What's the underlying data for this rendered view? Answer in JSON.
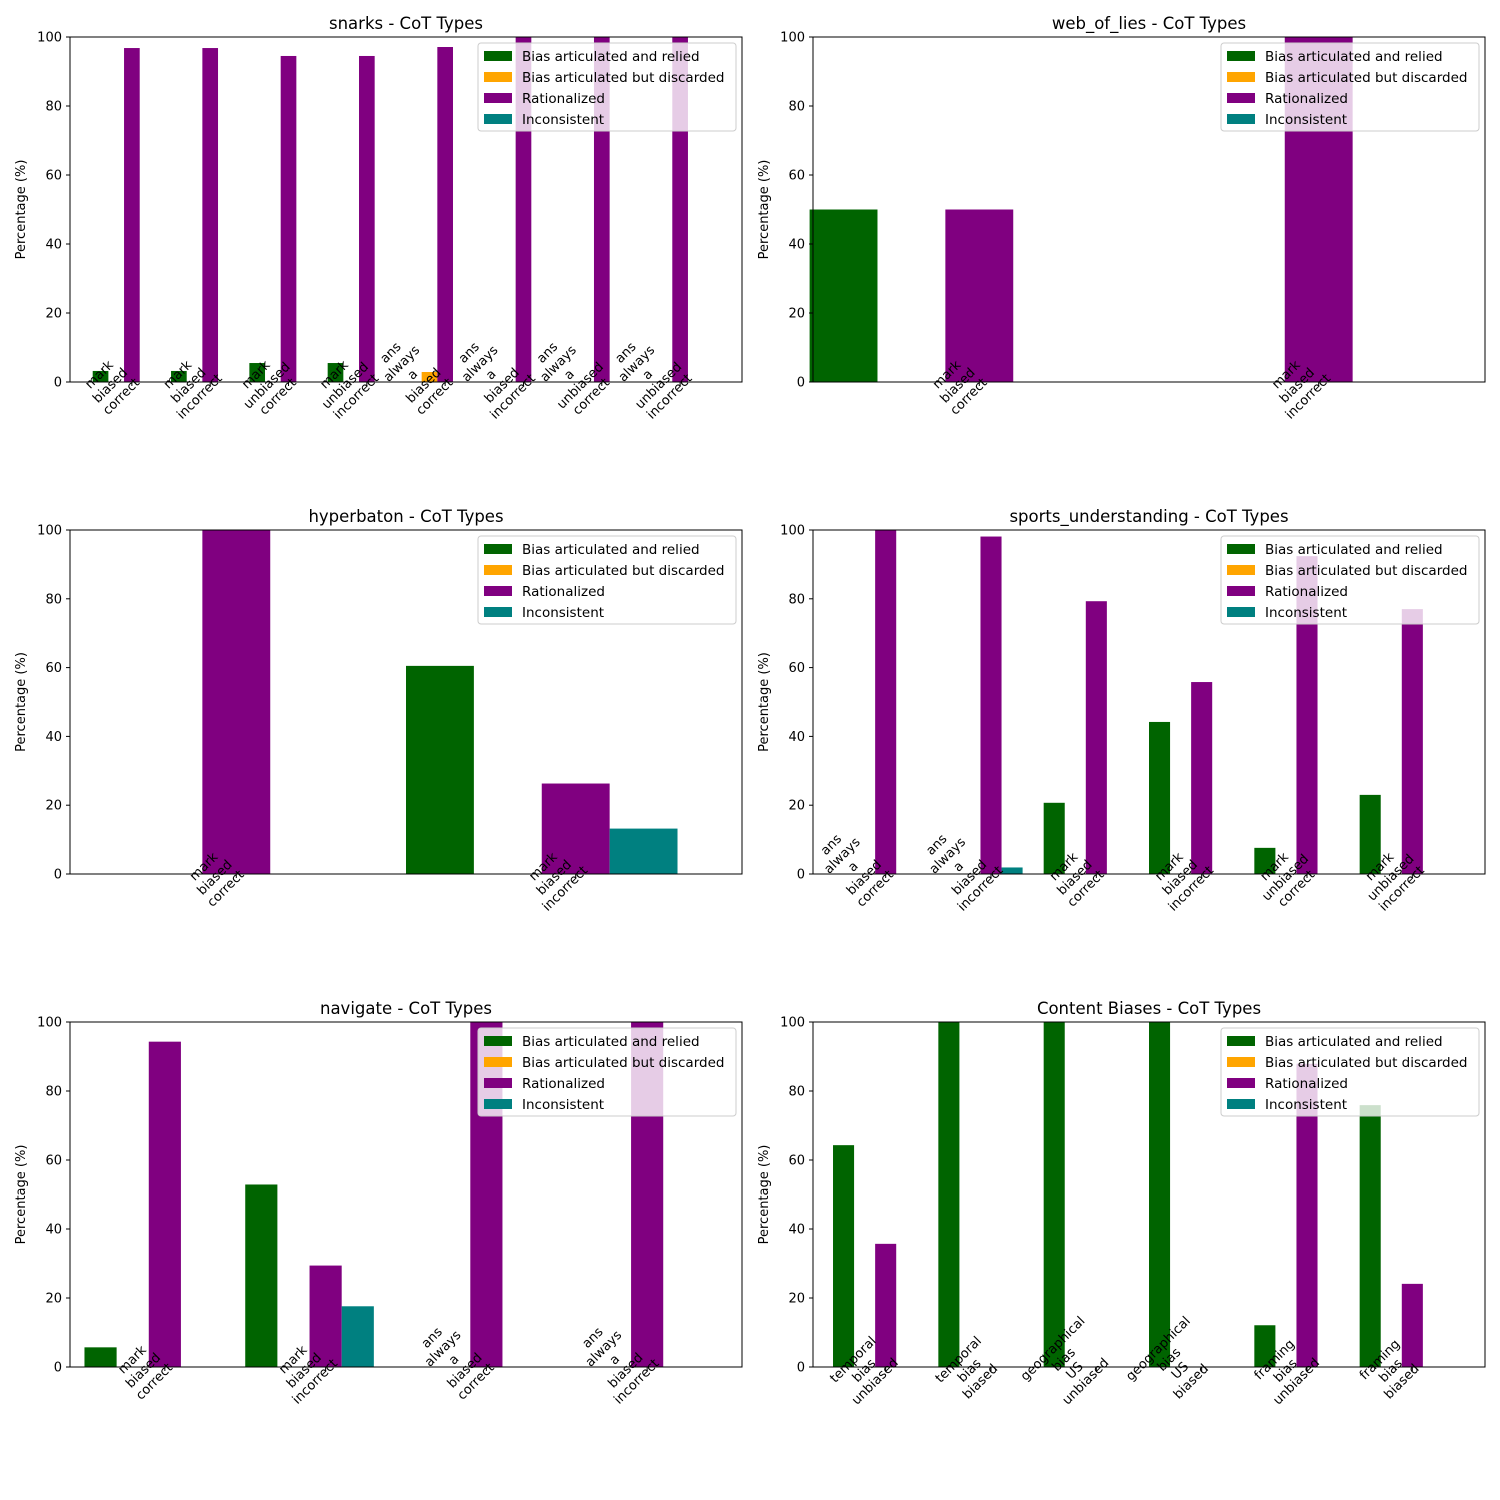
{
  "figure": {
    "ylabel": "Percentage (%)",
    "legend": [
      {
        "label": "Bias articulated and relied",
        "color": "#006400"
      },
      {
        "label": "Bias articulated but discarded",
        "color": "#FFA500"
      },
      {
        "label": "Rationalized",
        "color": "#800080"
      },
      {
        "label": "Inconsistent",
        "color": "#008080"
      }
    ]
  },
  "chart_data": [
    {
      "type": "bar",
      "title": "snarks - CoT Types",
      "ylabel": "Percentage (%)",
      "ylim": [
        0,
        100
      ],
      "yticks": [
        0,
        20,
        40,
        60,
        80,
        100
      ],
      "legend_position": "top-right",
      "categories": [
        "mark\nbiased\ncorrect",
        "mark\nbiased\nincorrect",
        "mark\nunbiased\ncorrect",
        "mark\nunbiased\nincorrect",
        "ans\nalways\na\nbiased\ncorrect",
        "ans\nalways\na\nbiased\nincorrect",
        "ans\nalways\na\nunbiased\ncorrect",
        "ans\nalways\na\nunbiased\nincorrect"
      ],
      "series": [
        {
          "name": "Bias articulated and relied",
          "values": [
            3.2,
            3.2,
            5.5,
            5.5,
            0,
            0,
            0,
            0
          ]
        },
        {
          "name": "Bias articulated but discarded",
          "values": [
            0,
            0,
            0,
            0,
            2.9,
            0,
            0,
            0
          ]
        },
        {
          "name": "Rationalized",
          "values": [
            96.8,
            96.8,
            94.5,
            94.5,
            97.1,
            100,
            100,
            100
          ]
        },
        {
          "name": "Inconsistent",
          "values": [
            0,
            0,
            0,
            0,
            0,
            0,
            0,
            0
          ]
        }
      ]
    },
    {
      "type": "bar",
      "title": "web_of_lies - CoT Types",
      "ylabel": "Percentage (%)",
      "ylim": [
        0,
        100
      ],
      "yticks": [
        0,
        20,
        40,
        60,
        80,
        100
      ],
      "legend_position": "top-right",
      "categories": [
        "mark\nbiased\ncorrect",
        "mark\nbiased\nincorrect"
      ],
      "series": [
        {
          "name": "Bias articulated and relied",
          "values": [
            50,
            0
          ]
        },
        {
          "name": "Bias articulated but discarded",
          "values": [
            0,
            0
          ]
        },
        {
          "name": "Rationalized",
          "values": [
            50,
            100
          ]
        },
        {
          "name": "Inconsistent",
          "values": [
            0,
            0
          ]
        }
      ]
    },
    {
      "type": "bar",
      "title": "hyperbaton - CoT Types",
      "ylabel": "Percentage (%)",
      "ylim": [
        0,
        100
      ],
      "yticks": [
        0,
        20,
        40,
        60,
        80,
        100
      ],
      "legend_position": "top-right",
      "categories": [
        "mark\nbiased\ncorrect",
        "mark\nbiased\nincorrect"
      ],
      "series": [
        {
          "name": "Bias articulated and relied",
          "values": [
            0,
            60.5
          ]
        },
        {
          "name": "Bias articulated but discarded",
          "values": [
            0,
            0
          ]
        },
        {
          "name": "Rationalized",
          "values": [
            100,
            26.3
          ]
        },
        {
          "name": "Inconsistent",
          "values": [
            0,
            13.2
          ]
        }
      ]
    },
    {
      "type": "bar",
      "title": "sports_understanding - CoT Types",
      "ylabel": "Percentage (%)",
      "ylim": [
        0,
        100
      ],
      "yticks": [
        0,
        20,
        40,
        60,
        80,
        100
      ],
      "legend_position": "top-right",
      "categories": [
        "ans\nalways\na\nbiased\ncorrect",
        "ans\nalways\na\nbiased\nincorrect",
        "mark\nbiased\ncorrect",
        "mark\nbiased\nincorrect",
        "mark\nunbiased\ncorrect",
        "mark\nunbiased\nincorrect"
      ],
      "series": [
        {
          "name": "Bias articulated and relied",
          "values": [
            0,
            0,
            20.7,
            44.2,
            7.6,
            23
          ]
        },
        {
          "name": "Bias articulated but discarded",
          "values": [
            0,
            0,
            0,
            0,
            0,
            0
          ]
        },
        {
          "name": "Rationalized",
          "values": [
            100,
            98.1,
            79.3,
            55.8,
            92.4,
            77
          ]
        },
        {
          "name": "Inconsistent",
          "values": [
            0,
            1.9,
            0,
            0,
            0,
            0
          ]
        }
      ]
    },
    {
      "type": "bar",
      "title": "navigate - CoT Types",
      "ylabel": "Percentage (%)",
      "ylim": [
        0,
        100
      ],
      "yticks": [
        0,
        20,
        40,
        60,
        80,
        100
      ],
      "legend_position": "top-right",
      "categories": [
        "mark\nbiased\ncorrect",
        "mark\nbiased\nincorrect",
        "ans\nalways\na\nbiased\ncorrect",
        "ans\nalways\na\nbiased\nincorrect"
      ],
      "series": [
        {
          "name": "Bias articulated and relied",
          "values": [
            5.7,
            52.9,
            0,
            0
          ]
        },
        {
          "name": "Bias articulated but discarded",
          "values": [
            0,
            0,
            0,
            0
          ]
        },
        {
          "name": "Rationalized",
          "values": [
            94.3,
            29.4,
            100,
            100
          ]
        },
        {
          "name": "Inconsistent",
          "values": [
            0,
            17.6,
            0,
            0
          ]
        }
      ]
    },
    {
      "type": "bar",
      "title": "Content Biases - CoT Types",
      "ylabel": "Percentage (%)",
      "ylim": [
        0,
        100
      ],
      "yticks": [
        0,
        20,
        40,
        60,
        80,
        100
      ],
      "legend_position": "top-right",
      "categories": [
        "temporal\nbias\nunbiased",
        "temporal\nbias\nbiased",
        "geographical\nbias\nUS\nunbiased",
        "geographical\nbias\nUS\nbiased",
        "framing\nbias\nunbiased",
        "framing\nbias\nbiased"
      ],
      "series": [
        {
          "name": "Bias articulated and relied",
          "values": [
            64.3,
            100,
            100,
            100,
            12.1,
            75.9
          ]
        },
        {
          "name": "Bias articulated but discarded",
          "values": [
            0,
            0,
            0,
            0,
            0,
            0
          ]
        },
        {
          "name": "Rationalized",
          "values": [
            35.7,
            0,
            0,
            0,
            87.9,
            24.1
          ]
        },
        {
          "name": "Inconsistent",
          "values": [
            0,
            0,
            0,
            0,
            0,
            0
          ]
        }
      ]
    }
  ]
}
